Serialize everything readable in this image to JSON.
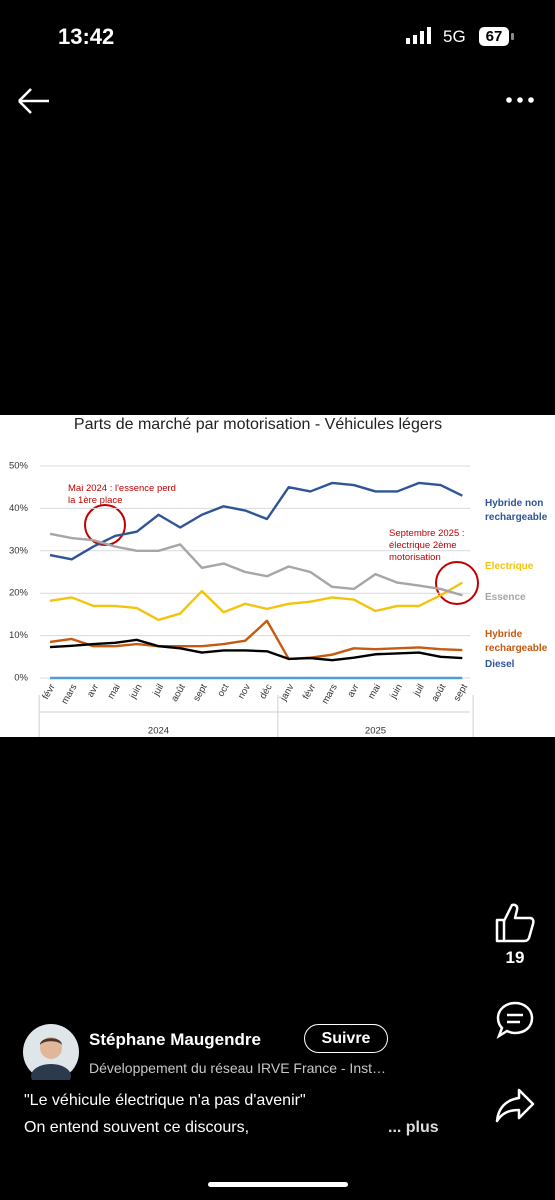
{
  "status_bar": {
    "time": "13:42",
    "network": "5G",
    "battery": "67"
  },
  "chart_data": {
    "type": "line",
    "title": "Parts de marché par motorisation - Véhicules légers",
    "categories": [
      "févr",
      "mars",
      "avr",
      "mai",
      "juin",
      "juil",
      "août",
      "sept",
      "oct",
      "nov",
      "déc",
      "janv",
      "févr",
      "mars",
      "avr",
      "mai",
      "juin",
      "juil",
      "août",
      "sept"
    ],
    "groups": [
      {
        "label": "2024",
        "count": 11
      },
      {
        "label": "2025",
        "count": 9
      }
    ],
    "series": [
      {
        "name": "Hybride non rechargeable",
        "color": "#2f5597",
        "values": [
          29,
          28,
          31,
          33.5,
          34.5,
          38.5,
          35.5,
          38.5,
          40.5,
          39.5,
          37.5,
          45,
          44,
          46,
          45.5,
          44,
          44,
          46,
          45.5,
          43
        ]
      },
      {
        "name": "Electrique",
        "color": "#f2c40f",
        "values": [
          18.2,
          19,
          17,
          17,
          16.5,
          13.7,
          15.2,
          20.5,
          15.5,
          17.5,
          16.3,
          17.5,
          18,
          19,
          18.5,
          15.8,
          17,
          17,
          19.5,
          22.5
        ]
      },
      {
        "name": "Essence",
        "color": "#a6a6a6",
        "values": [
          34,
          33,
          32.5,
          31,
          30,
          30,
          31.5,
          26,
          27,
          25,
          24,
          26.3,
          25,
          21.5,
          21,
          24.5,
          22.5,
          21.8,
          21,
          19.5
        ]
      },
      {
        "name": "Hybride rechargeable",
        "color": "#c55a11",
        "values": [
          8.5,
          9.2,
          7.5,
          7.5,
          8,
          7.5,
          7.5,
          7.5,
          8,
          8.8,
          13.5,
          4.5,
          4.8,
          5.5,
          7,
          6.8,
          7,
          7.2,
          6.8,
          6.6
        ]
      },
      {
        "name": "Diesel",
        "color": "#000000",
        "values": [
          7.3,
          7.6,
          8,
          8.3,
          9,
          7.5,
          7,
          6,
          6.5,
          6.5,
          6.3,
          4.5,
          4.7,
          4.2,
          4.8,
          5.6,
          5.8,
          6,
          5,
          4.7
        ]
      },
      {
        "color": "#4a9fd8",
        "values": [
          0,
          0,
          0,
          0,
          0,
          0,
          0,
          0,
          0,
          0,
          0,
          0,
          0,
          0,
          0,
          0,
          0,
          0,
          0,
          0
        ]
      }
    ],
    "ylim": [
      0,
      50
    ],
    "yticks": [
      {
        "value": 0,
        "label": "0%"
      },
      {
        "value": 10,
        "label": "10%"
      },
      {
        "value": 20,
        "label": "20%"
      },
      {
        "value": 30,
        "label": "30%"
      },
      {
        "value": 40,
        "label": "40%"
      },
      {
        "value": 50,
        "label": "50%"
      }
    ],
    "grid": true,
    "annotations": [
      "Mai 2024 : l'essence perd la 1ère place",
      "Septembre 2025 : électrique 2ème motorisation"
    ]
  },
  "post": {
    "author": "Stéphane Maugendre",
    "follow": "Suivre",
    "headline": "Développement du réseau IRVE France - Inst…",
    "caption": [
      "\"Le véhicule électrique n'a pas d'avenir\"",
      "On entend souvent ce discours,"
    ],
    "more": "... plus",
    "likes": 19
  }
}
